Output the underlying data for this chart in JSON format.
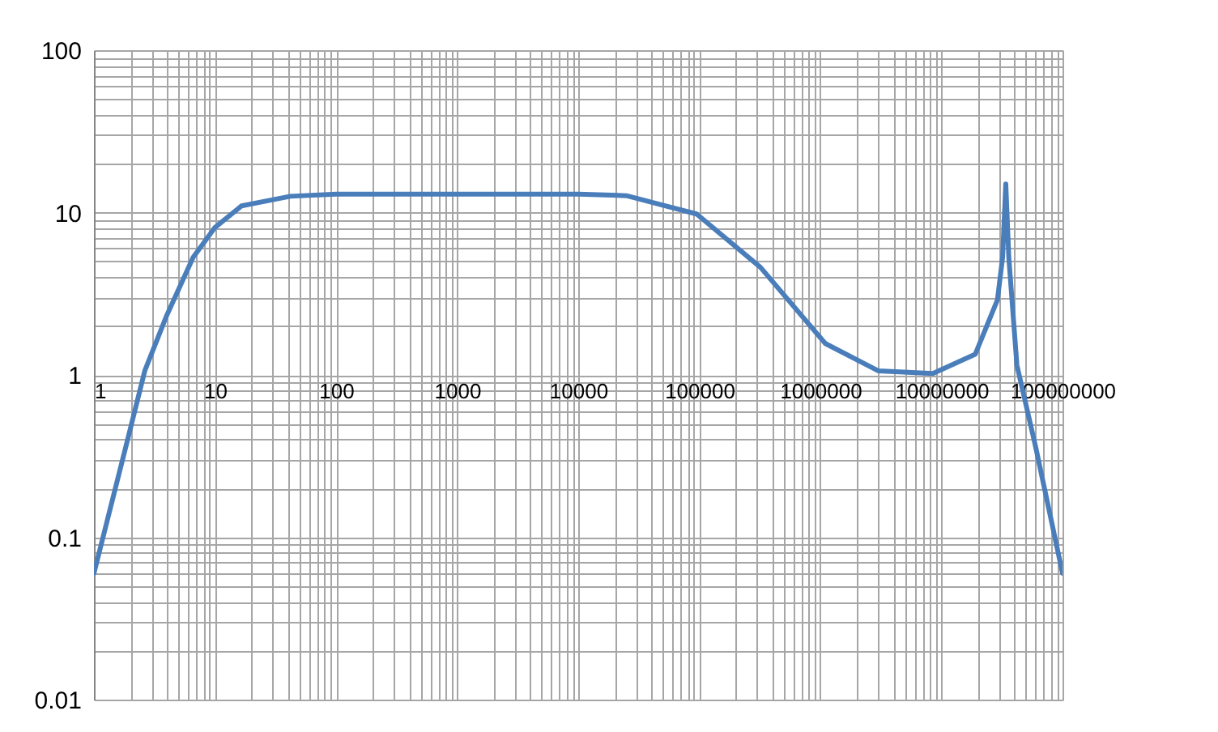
{
  "chart_data": {
    "type": "line",
    "log": "xy",
    "grid": true,
    "line_style": "solid",
    "marker": "none",
    "x": [
      1,
      1.93,
      2.63,
      3.96,
      6.6,
      10,
      16.6,
      42,
      100,
      1000,
      10000,
      25000,
      95000,
      320000,
      1100000,
      3000000,
      8500000,
      19000000,
      29000000,
      32000000,
      34000000,
      36000000,
      42000000,
      60000000,
      100000000
    ],
    "series": [
      {
        "color": "#4a7ebb",
        "values": [
          0.06,
          0.42,
          1.06,
          2.29,
          5.3,
          8.1,
          11.0,
          12.6,
          13,
          13,
          13,
          12.7,
          9.8,
          4.6,
          1.56,
          1.06,
          1.02,
          1.34,
          2.9,
          5.3,
          15,
          5.3,
          1.15,
          0.36,
          0.06
        ]
      }
    ],
    "xlim": [
      1,
      100000000
    ],
    "ylim": [
      0.01,
      100
    ],
    "xticks": [
      1,
      {
        "value": 2,
        "label": null
      },
      {
        "value": 3,
        "label": null
      },
      {
        "value": 4,
        "label": null
      },
      {
        "value": 5,
        "label": null
      },
      {
        "value": 6,
        "label": null
      },
      {
        "value": 7,
        "label": null
      },
      {
        "value": 8,
        "label": null
      },
      {
        "value": 9,
        "label": null
      },
      10,
      {
        "value": 20,
        "label": null
      },
      {
        "value": 30,
        "label": null
      },
      {
        "value": 40,
        "label": null
      },
      {
        "value": 50,
        "label": null
      },
      {
        "value": 60,
        "label": null
      },
      {
        "value": 70,
        "label": null
      },
      {
        "value": 80,
        "label": null
      },
      {
        "value": 90,
        "label": null
      },
      100,
      {
        "value": 200,
        "label": null
      },
      {
        "value": 300,
        "label": null
      },
      {
        "value": 400,
        "label": null
      },
      {
        "value": 500,
        "label": null
      },
      {
        "value": 600,
        "label": null
      },
      {
        "value": 700,
        "label": null
      },
      {
        "value": 800,
        "label": null
      },
      {
        "value": 900,
        "label": null
      },
      1000,
      {
        "value": 2000,
        "label": null
      },
      {
        "value": 3000,
        "label": null
      },
      {
        "value": 4000,
        "label": null
      },
      {
        "value": 5000,
        "label": null
      },
      {
        "value": 6000,
        "label": null
      },
      {
        "value": 7000,
        "label": null
      },
      {
        "value": 8000,
        "label": null
      },
      {
        "value": 9000,
        "label": null
      },
      10000,
      {
        "value": 20000,
        "label": null
      },
      {
        "value": 30000,
        "label": null
      },
      {
        "value": 40000,
        "label": null
      },
      {
        "value": 50000,
        "label": null
      },
      {
        "value": 60000,
        "label": null
      },
      {
        "value": 70000,
        "label": null
      },
      {
        "value": 80000,
        "label": null
      },
      {
        "value": 90000,
        "label": null
      },
      100000,
      {
        "value": 200000,
        "label": null
      },
      {
        "value": 300000,
        "label": null
      },
      {
        "value": 400000,
        "label": null
      },
      {
        "value": 500000,
        "label": null
      },
      {
        "value": 600000,
        "label": null
      },
      {
        "value": 700000,
        "label": null
      },
      {
        "value": 800000,
        "label": null
      },
      {
        "value": 900000,
        "label": null
      },
      1000000,
      {
        "value": 2000000,
        "label": null
      },
      {
        "value": 3000000,
        "label": null
      },
      {
        "value": 4000000,
        "label": null
      },
      {
        "value": 5000000,
        "label": null
      },
      {
        "value": 6000000,
        "label": null
      },
      {
        "value": 7000000,
        "label": null
      },
      {
        "value": 8000000,
        "label": null
      },
      {
        "value": 9000000,
        "label": null
      },
      10000000,
      {
        "value": 20000000,
        "label": null
      },
      {
        "value": 30000000,
        "label": null
      },
      {
        "value": 40000000,
        "label": null
      },
      {
        "value": 50000000,
        "label": null
      },
      {
        "value": 60000000,
        "label": null
      },
      {
        "value": 70000000,
        "label": null
      },
      {
        "value": 80000000,
        "label": null
      },
      {
        "value": 90000000,
        "label": null
      },
      100000000
    ],
    "yticks": [
      0.01,
      {
        "value": 0.02,
        "label": null
      },
      {
        "value": 0.03,
        "label": null
      },
      {
        "value": 0.04,
        "label": null
      },
      {
        "value": 0.05,
        "label": null
      },
      {
        "value": 0.06,
        "label": null
      },
      {
        "value": 0.07,
        "label": null
      },
      {
        "value": 0.08,
        "label": null
      },
      {
        "value": 0.09,
        "label": null
      },
      0.1,
      {
        "value": 0.2,
        "label": null
      },
      {
        "value": 0.3,
        "label": null
      },
      {
        "value": 0.4,
        "label": null
      },
      {
        "value": 0.5,
        "label": null
      },
      {
        "value": 0.6,
        "label": null
      },
      {
        "value": 0.7,
        "label": null
      },
      {
        "value": 0.8,
        "label": null
      },
      {
        "value": 0.9,
        "label": null
      },
      1,
      {
        "value": 2,
        "label": null
      },
      {
        "value": 3,
        "label": null
      },
      {
        "value": 4,
        "label": null
      },
      {
        "value": 5,
        "label": null
      },
      {
        "value": 6,
        "label": null
      },
      {
        "value": 7,
        "label": null
      },
      {
        "value": 8,
        "label": null
      },
      {
        "value": 9,
        "label": null
      },
      10,
      {
        "value": 20,
        "label": null
      },
      {
        "value": 30,
        "label": null
      },
      {
        "value": 40,
        "label": null
      },
      {
        "value": 50,
        "label": null
      },
      {
        "value": 60,
        "label": null
      },
      {
        "value": 70,
        "label": null
      },
      {
        "value": 80,
        "label": null
      },
      {
        "value": 90,
        "label": null
      },
      100
    ]
  }
}
